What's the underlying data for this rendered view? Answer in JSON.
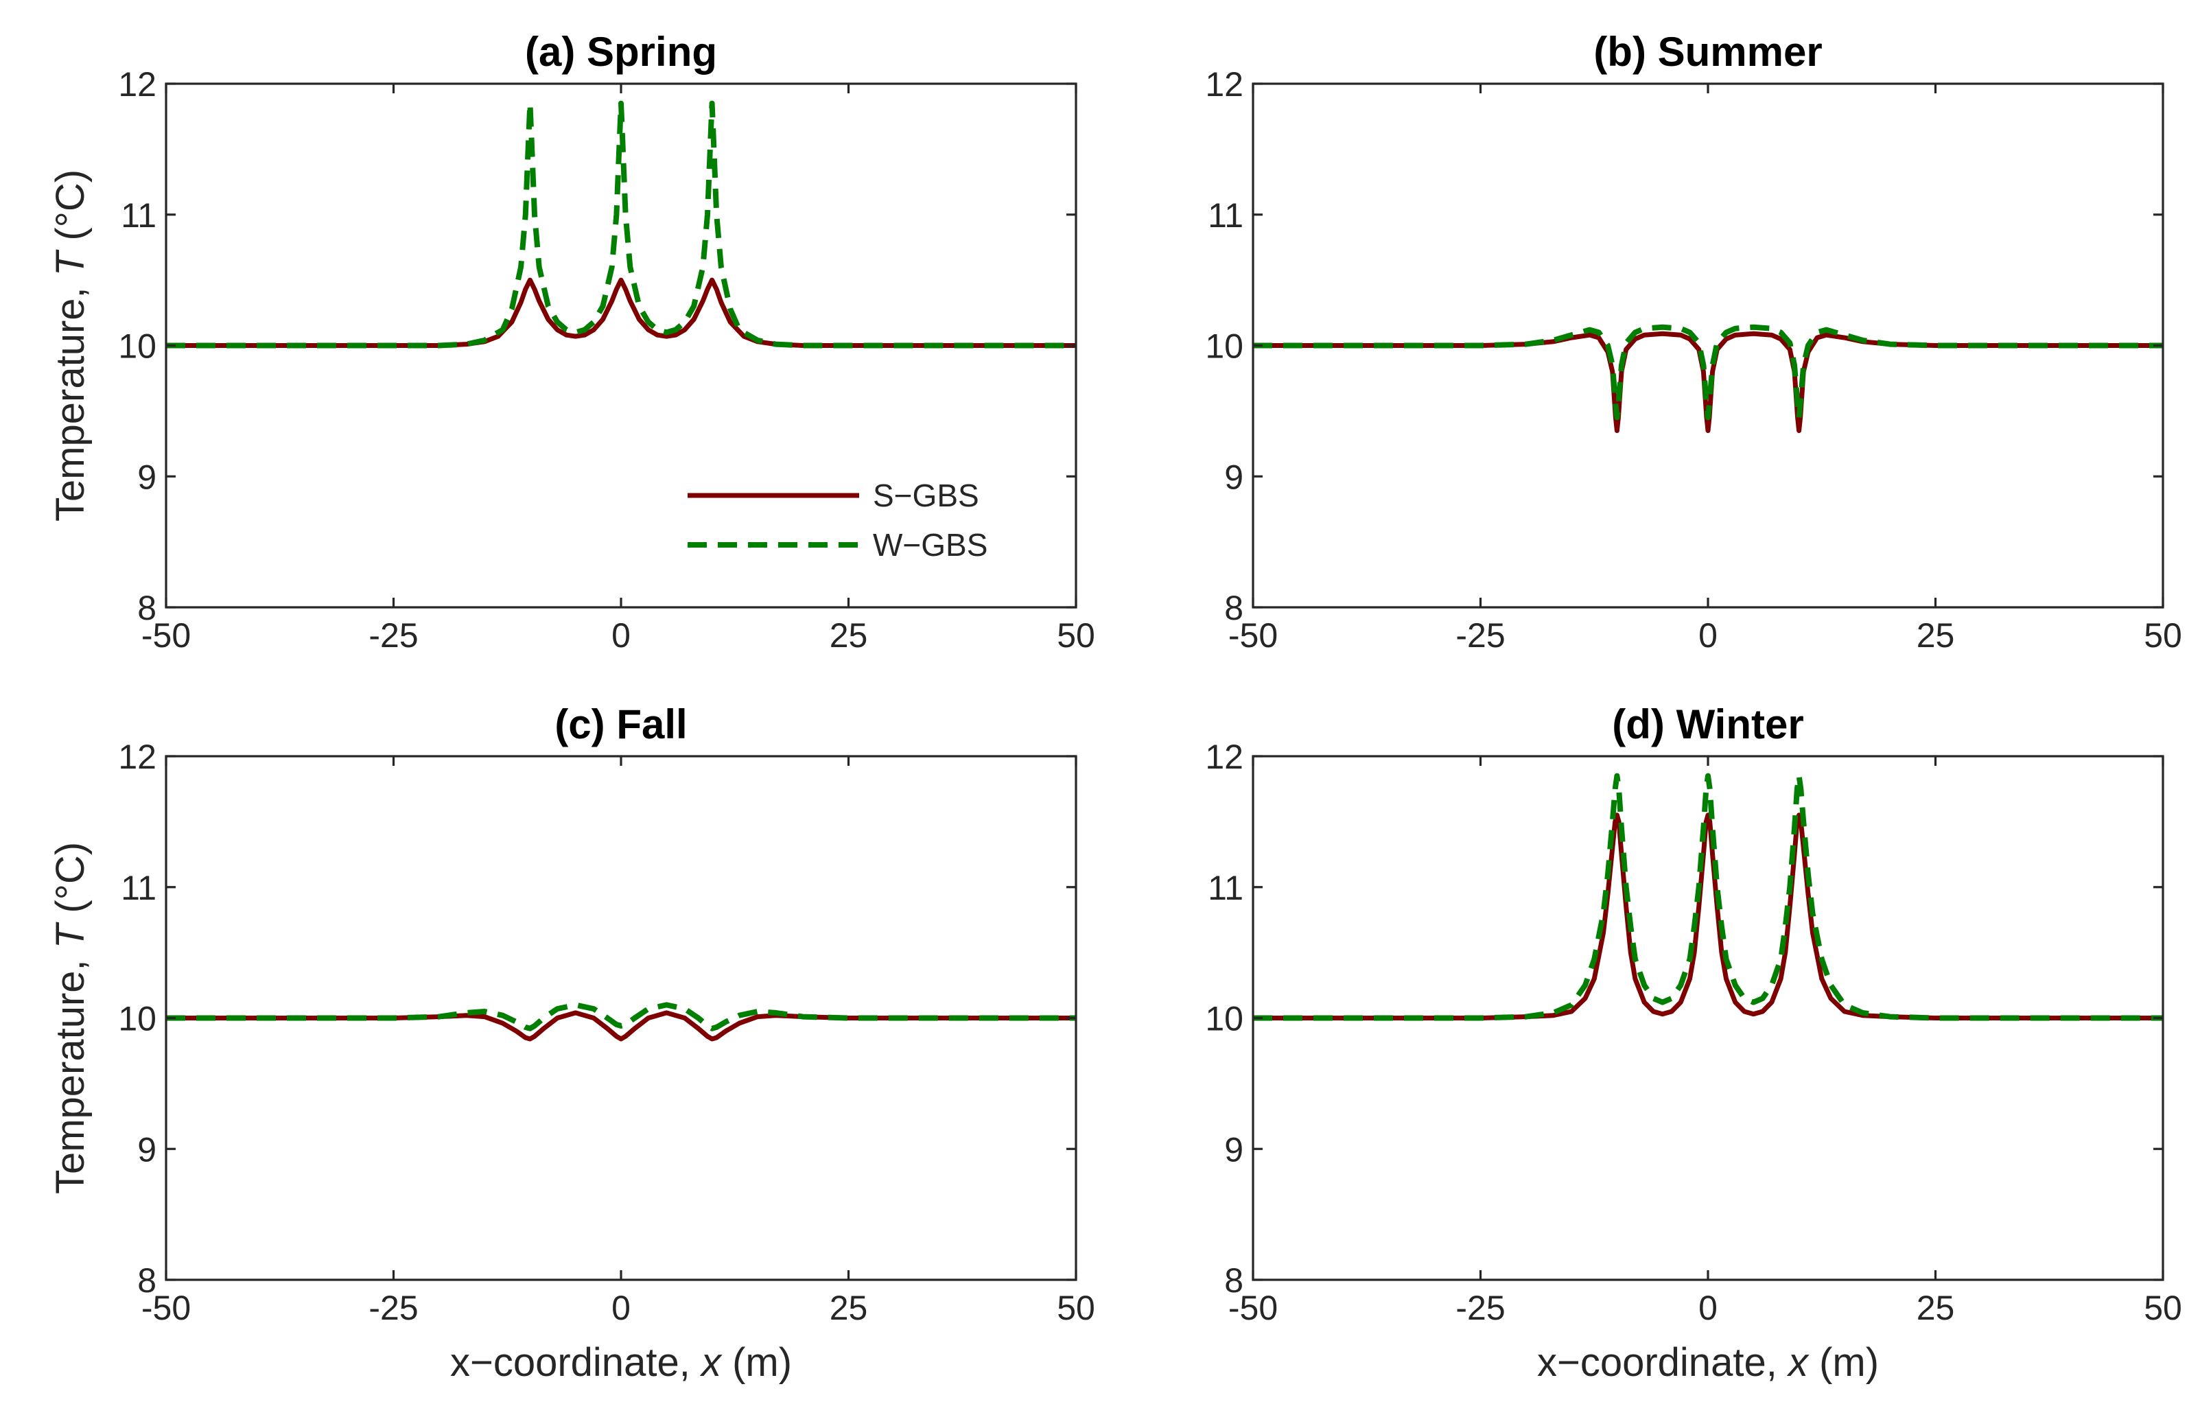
{
  "chart_data": [
    {
      "type": "line",
      "panel": "a",
      "title": "(a) Spring",
      "xlabel": "",
      "ylabel": "Temperature,",
      "ylabel_symbol": "T",
      "ylabel_unit": "(°C)",
      "xlim": [
        -50,
        50
      ],
      "ylim": [
        8,
        12
      ],
      "xticks": [
        -50,
        -25,
        0,
        25,
        50
      ],
      "yticks": [
        8,
        9,
        10,
        11,
        12
      ],
      "legend": {
        "position": "bottom-right",
        "entries": [
          "S−GBS",
          "W−GBS"
        ]
      },
      "series": [
        {
          "name": "S−GBS",
          "style": "solid",
          "color": "#7f0000",
          "x": [
            -50,
            -30,
            -20,
            -17,
            -15,
            -13.5,
            -12,
            -11,
            -10.5,
            -10,
            -9.5,
            -9,
            -8,
            -7,
            -6,
            -5,
            -4,
            -3,
            -2,
            -1,
            -0.5,
            0,
            0.5,
            1,
            2,
            3,
            4,
            5,
            6,
            7,
            8,
            9,
            9.5,
            10,
            10.5,
            11,
            12,
            13.5,
            15,
            17,
            20,
            30,
            50
          ],
          "y": [
            10,
            10,
            10,
            10.01,
            10.03,
            10.07,
            10.18,
            10.33,
            10.43,
            10.5,
            10.43,
            10.34,
            10.2,
            10.12,
            10.08,
            10.07,
            10.08,
            10.12,
            10.2,
            10.34,
            10.43,
            10.5,
            10.43,
            10.34,
            10.2,
            10.12,
            10.08,
            10.07,
            10.08,
            10.12,
            10.2,
            10.34,
            10.43,
            10.5,
            10.43,
            10.33,
            10.18,
            10.07,
            10.03,
            10.01,
            10,
            10,
            10
          ]
        },
        {
          "name": "W−GBS",
          "style": "dashed",
          "color": "#007f00",
          "x": [
            -50,
            -30,
            -20,
            -17,
            -15,
            -13,
            -12,
            -11,
            -10.5,
            -10.15,
            -10,
            -9.85,
            -9.5,
            -9,
            -8,
            -7,
            -6,
            -5,
            -4,
            -3,
            -2,
            -1,
            -0.5,
            -0.15,
            0,
            0.15,
            0.5,
            1,
            2,
            3,
            4,
            5,
            6,
            7,
            8,
            9,
            9.5,
            9.85,
            10,
            10.15,
            10.5,
            11,
            12,
            13,
            15,
            17,
            20,
            30,
            50
          ],
          "y": [
            10,
            10,
            10,
            10.01,
            10.04,
            10.12,
            10.28,
            10.6,
            11.0,
            11.6,
            11.85,
            11.6,
            11.0,
            10.6,
            10.3,
            10.18,
            10.12,
            10.1,
            10.12,
            10.18,
            10.3,
            10.6,
            11.0,
            11.6,
            11.85,
            11.6,
            11.0,
            10.6,
            10.3,
            10.18,
            10.12,
            10.1,
            10.12,
            10.18,
            10.3,
            10.6,
            11.0,
            11.6,
            11.85,
            11.6,
            11.0,
            10.6,
            10.28,
            10.12,
            10.04,
            10.01,
            10,
            10,
            10
          ]
        }
      ]
    },
    {
      "type": "line",
      "panel": "b",
      "title": "(b) Summer",
      "xlabel": "",
      "ylabel": "",
      "xlim": [
        -50,
        50
      ],
      "ylim": [
        8,
        12
      ],
      "xticks": [
        -50,
        -25,
        0,
        25,
        50
      ],
      "yticks": [
        8,
        9,
        10,
        11,
        12
      ],
      "series": [
        {
          "name": "S−GBS",
          "style": "solid",
          "color": "#7f0000",
          "x": [
            -50,
            -25,
            -20,
            -17,
            -15,
            -13,
            -12,
            -11,
            -10.5,
            -10.15,
            -10,
            -9.85,
            -9.5,
            -9,
            -8,
            -7,
            -5,
            -3,
            -2,
            -1,
            -0.5,
            -0.15,
            0,
            0.15,
            0.5,
            1,
            2,
            3,
            5,
            7,
            8,
            9,
            9.5,
            9.85,
            10,
            10.15,
            10.5,
            11,
            12,
            13,
            15,
            17,
            20,
            25,
            50
          ],
          "y": [
            10,
            10,
            10.01,
            10.03,
            10.06,
            10.08,
            10.06,
            9.95,
            9.8,
            9.45,
            9.35,
            9.45,
            9.8,
            9.97,
            10.05,
            10.08,
            10.09,
            10.08,
            10.05,
            9.97,
            9.8,
            9.45,
            9.35,
            9.45,
            9.8,
            9.97,
            10.05,
            10.08,
            10.09,
            10.08,
            10.05,
            9.97,
            9.8,
            9.45,
            9.35,
            9.45,
            9.8,
            9.95,
            10.06,
            10.08,
            10.06,
            10.03,
            10.01,
            10,
            10
          ]
        },
        {
          "name": "W−GBS",
          "style": "dashed",
          "color": "#007f00",
          "x": [
            -50,
            -25,
            -20,
            -17,
            -15,
            -13,
            -12,
            -11,
            -10.5,
            -10.15,
            -10,
            -9.85,
            -9.5,
            -9,
            -8,
            -7,
            -5,
            -3,
            -2,
            -1,
            -0.5,
            -0.15,
            0,
            0.15,
            0.5,
            1,
            2,
            3,
            5,
            7,
            8,
            9,
            9.5,
            9.85,
            10,
            10.15,
            10.5,
            11,
            12,
            13,
            15,
            17,
            20,
            25,
            50
          ],
          "y": [
            10,
            10,
            10.01,
            10.04,
            10.08,
            10.12,
            10.1,
            10.0,
            9.85,
            9.55,
            9.45,
            9.55,
            9.85,
            10.02,
            10.1,
            10.13,
            10.14,
            10.13,
            10.1,
            10.02,
            9.85,
            9.55,
            9.45,
            9.55,
            9.85,
            10.02,
            10.1,
            10.13,
            10.14,
            10.13,
            10.1,
            10.02,
            9.85,
            9.55,
            9.45,
            9.55,
            9.85,
            10.0,
            10.1,
            10.12,
            10.08,
            10.04,
            10.01,
            10,
            10
          ]
        }
      ]
    },
    {
      "type": "line",
      "panel": "c",
      "title": "(c) Fall",
      "xlabel": "x−coordinate,",
      "xlabel_symbol": "x",
      "xlabel_unit": "(m)",
      "ylabel": "Temperature,",
      "ylabel_symbol": "T",
      "ylabel_unit": "(°C)",
      "xlim": [
        -50,
        50
      ],
      "ylim": [
        8,
        12
      ],
      "xticks": [
        -50,
        -25,
        0,
        25,
        50
      ],
      "yticks": [
        8,
        9,
        10,
        11,
        12
      ],
      "series": [
        {
          "name": "S−GBS",
          "style": "solid",
          "color": "#7f0000",
          "x": [
            -50,
            -25,
            -20,
            -17,
            -15,
            -13,
            -11.5,
            -10.5,
            -10,
            -9.5,
            -8.5,
            -7,
            -5,
            -3,
            -1.5,
            -0.5,
            0,
            0.5,
            1.5,
            3,
            5,
            7,
            8.5,
            9.5,
            10,
            10.5,
            11.5,
            13,
            15,
            17,
            20,
            25,
            50
          ],
          "y": [
            10,
            10,
            10.01,
            10.02,
            10.01,
            9.96,
            9.9,
            9.85,
            9.84,
            9.86,
            9.92,
            10.0,
            10.04,
            10.0,
            9.92,
            9.86,
            9.84,
            9.86,
            9.92,
            10.0,
            10.04,
            10.0,
            9.92,
            9.86,
            9.84,
            9.85,
            9.9,
            9.96,
            10.01,
            10.02,
            10.01,
            10,
            10
          ]
        },
        {
          "name": "W−GBS",
          "style": "dashed",
          "color": "#007f00",
          "x": [
            -50,
            -25,
            -20,
            -17,
            -15,
            -13,
            -11.5,
            -10.5,
            -10,
            -9.5,
            -8.5,
            -7,
            -5,
            -3,
            -1.5,
            -0.5,
            0,
            0.5,
            1.5,
            3,
            5,
            7,
            8.5,
            9.5,
            10,
            10.5,
            11.5,
            13,
            15,
            17,
            20,
            25,
            50
          ],
          "y": [
            10,
            10,
            10.01,
            10.04,
            10.05,
            10.02,
            9.97,
            9.93,
            9.92,
            9.94,
            10.0,
            10.07,
            10.1,
            10.07,
            10.0,
            9.95,
            9.94,
            9.95,
            10.0,
            10.07,
            10.1,
            10.07,
            10.0,
            9.94,
            9.92,
            9.93,
            9.97,
            10.02,
            10.05,
            10.04,
            10.01,
            10,
            10
          ]
        }
      ]
    },
    {
      "type": "line",
      "panel": "d",
      "title": "(d) Winter",
      "xlabel": "x−coordinate,",
      "xlabel_symbol": "x",
      "xlabel_unit": "(m)",
      "ylabel": "",
      "xlim": [
        -50,
        50
      ],
      "ylim": [
        8,
        12
      ],
      "xticks": [
        -50,
        -25,
        0,
        25,
        50
      ],
      "yticks": [
        8,
        9,
        10,
        11,
        12
      ],
      "series": [
        {
          "name": "S−GBS",
          "style": "solid",
          "color": "#7f0000",
          "x": [
            -50,
            -25,
            -20,
            -17,
            -15,
            -13.5,
            -12.5,
            -11.5,
            -11,
            -10.5,
            -10.2,
            -10,
            -9.8,
            -9.5,
            -9,
            -8.5,
            -8,
            -7,
            -6,
            -5,
            -4,
            -3,
            -2,
            -1.5,
            -1,
            -0.5,
            -0.2,
            0,
            0.2,
            0.5,
            1,
            1.5,
            2,
            3,
            4,
            5,
            6,
            7,
            8,
            8.5,
            9,
            9.5,
            9.8,
            10,
            10.2,
            10.5,
            11,
            11.5,
            12.5,
            13.5,
            15,
            17,
            20,
            25,
            50
          ],
          "y": [
            10,
            10,
            10.01,
            10.02,
            10.05,
            10.15,
            10.3,
            10.65,
            10.95,
            11.3,
            11.5,
            11.55,
            11.5,
            11.25,
            10.85,
            10.5,
            10.3,
            10.12,
            10.05,
            10.03,
            10.05,
            10.12,
            10.3,
            10.5,
            10.85,
            11.25,
            11.5,
            11.55,
            11.5,
            11.25,
            10.85,
            10.5,
            10.3,
            10.12,
            10.05,
            10.03,
            10.05,
            10.12,
            10.3,
            10.5,
            10.85,
            11.25,
            11.5,
            11.55,
            11.5,
            11.3,
            10.95,
            10.65,
            10.3,
            10.15,
            10.05,
            10.02,
            10.01,
            10,
            10
          ]
        },
        {
          "name": "W−GBS",
          "style": "dashed",
          "color": "#007f00",
          "x": [
            -50,
            -25,
            -20,
            -17,
            -15,
            -13.5,
            -12.5,
            -11.5,
            -11,
            -10.5,
            -10.2,
            -10,
            -9.8,
            -9.5,
            -9,
            -8.5,
            -8,
            -7,
            -6,
            -5,
            -4,
            -3,
            -2,
            -1.5,
            -1,
            -0.5,
            -0.2,
            0,
            0.2,
            0.5,
            1,
            1.5,
            2,
            3,
            4,
            5,
            6,
            7,
            8,
            8.5,
            9,
            9.5,
            9.8,
            10,
            10.2,
            10.5,
            11,
            11.5,
            12.5,
            13.5,
            15,
            17,
            20,
            25,
            50
          ],
          "y": [
            10,
            10,
            10.01,
            10.04,
            10.1,
            10.25,
            10.45,
            10.8,
            11.1,
            11.5,
            11.75,
            11.85,
            11.75,
            11.45,
            11.0,
            10.7,
            10.45,
            10.25,
            10.15,
            10.12,
            10.15,
            10.25,
            10.45,
            10.7,
            11.0,
            11.45,
            11.75,
            11.85,
            11.75,
            11.45,
            11.0,
            10.7,
            10.45,
            10.25,
            10.15,
            10.12,
            10.15,
            10.25,
            10.45,
            10.7,
            11.0,
            11.45,
            11.75,
            11.85,
            11.75,
            11.5,
            11.1,
            10.8,
            10.45,
            10.25,
            10.1,
            10.04,
            10.01,
            10,
            10
          ]
        }
      ]
    }
  ]
}
